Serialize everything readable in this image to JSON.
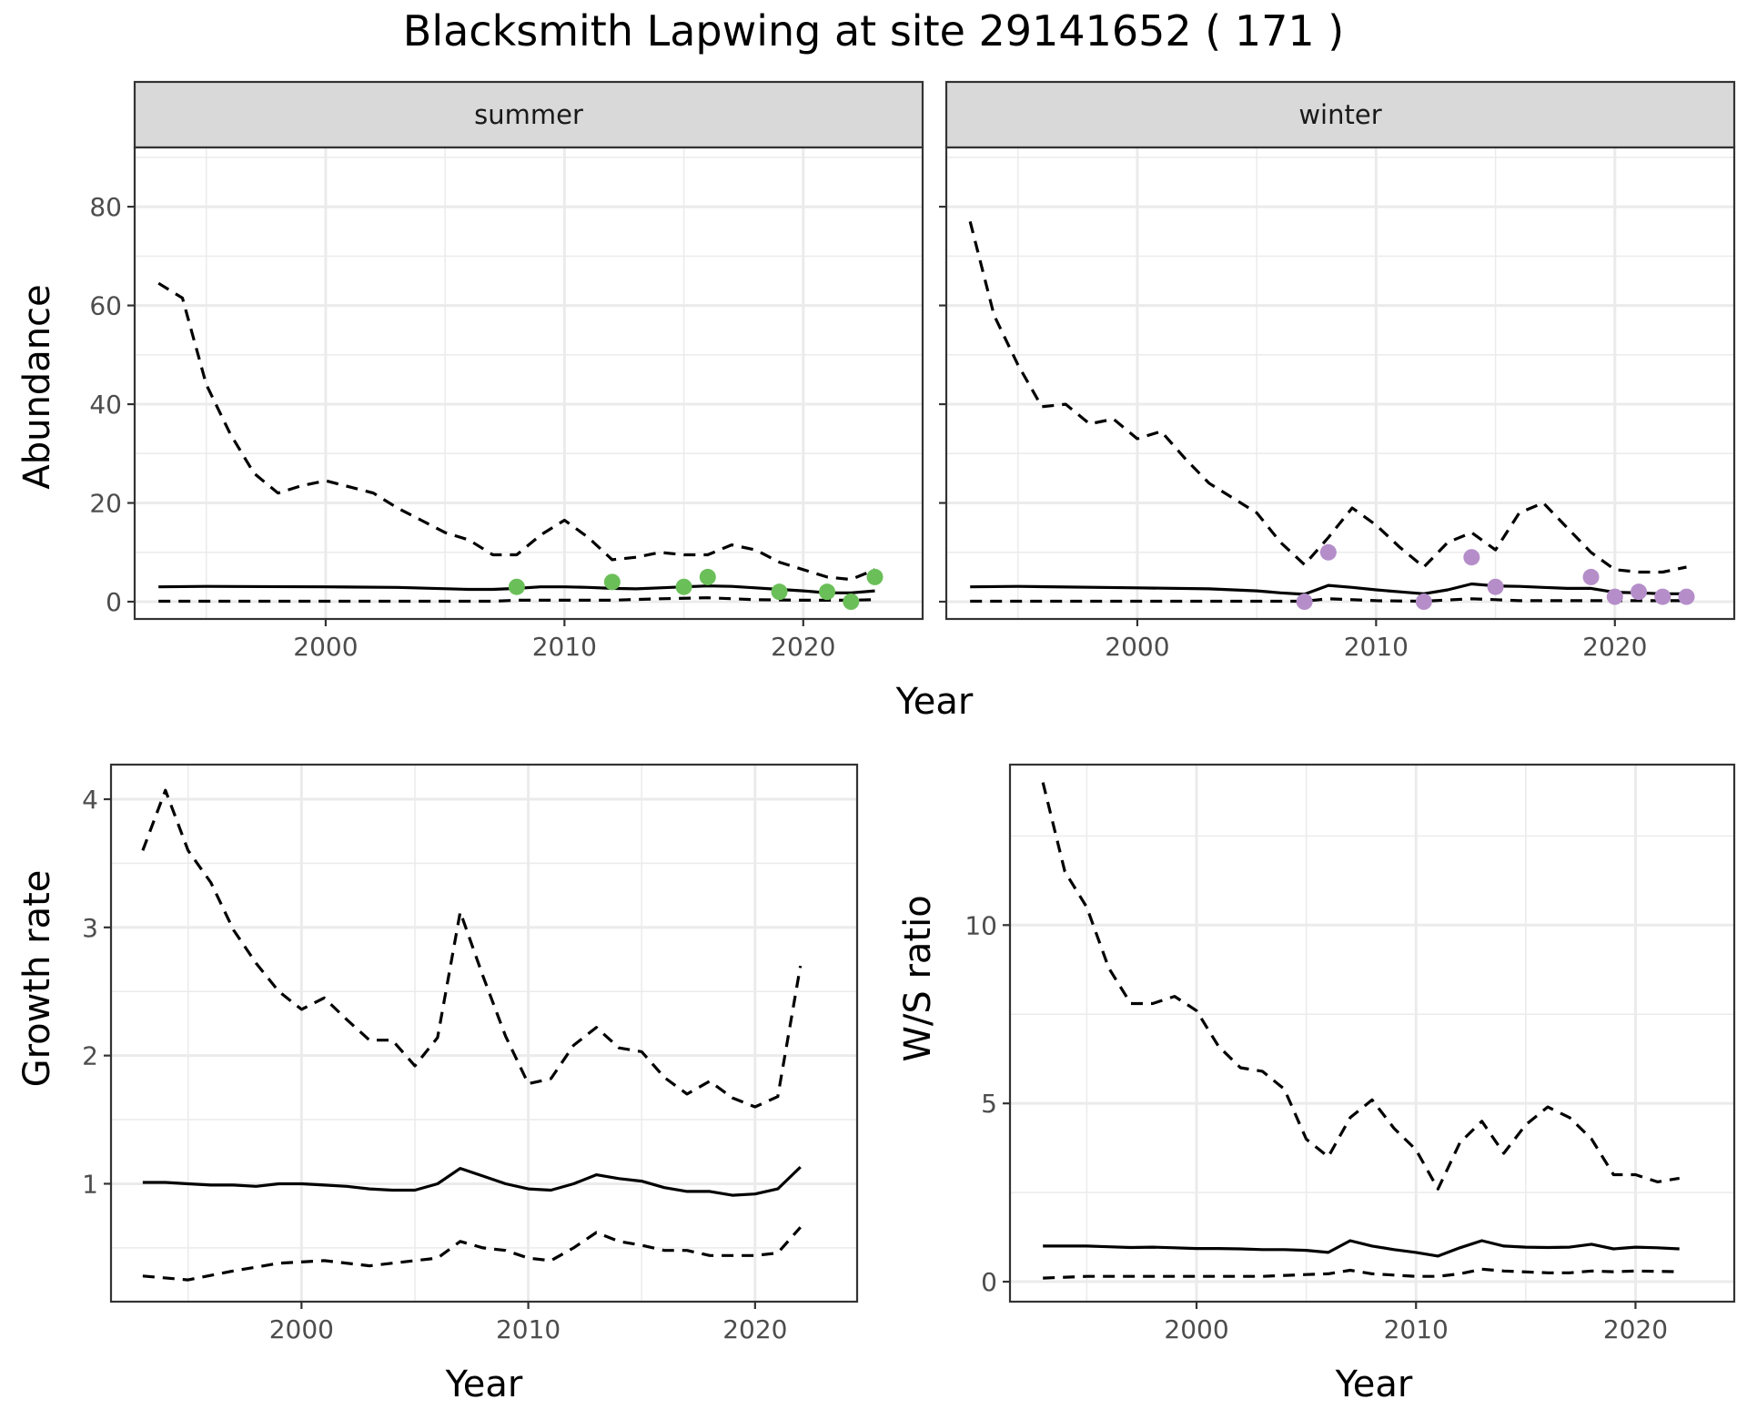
{
  "title": "Blacksmith Lapwing at site 29141652 ( 171 )",
  "colors": {
    "summer_points": "#6bbf59",
    "winter_points": "#b58ec9",
    "strip_fill": "#d9d9d9"
  },
  "chart_data": [
    {
      "type": "line",
      "panel": "summer",
      "strip_label": "summer",
      "xlabel": "Year",
      "ylabel": "Abundance",
      "xlim": [
        1992,
        2025
      ],
      "ylim": [
        -3.5,
        92
      ],
      "x_ticks": [
        2000,
        2010,
        2020
      ],
      "y_ticks": [
        0,
        20,
        40,
        60,
        80
      ],
      "grid": true,
      "series": [
        {
          "role": "estimate",
          "x": [
            1993,
            1995,
            2000,
            2003,
            2006,
            2007,
            2008,
            2009,
            2010,
            2011,
            2012,
            2013,
            2014,
            2015,
            2016,
            2017,
            2018,
            2019,
            2020,
            2021,
            2022,
            2023
          ],
          "y": [
            3.0,
            3.1,
            3.0,
            2.9,
            2.5,
            2.5,
            2.7,
            3.0,
            3.0,
            2.9,
            2.7,
            2.6,
            2.8,
            3.0,
            3.2,
            3.1,
            2.8,
            2.5,
            2.2,
            1.8,
            1.8,
            2.2
          ]
        },
        {
          "role": "upper",
          "x": [
            1993,
            1994,
            1995,
            1996,
            1997,
            1998,
            1999,
            2000,
            2002,
            2003,
            2004,
            2005,
            2006,
            2007,
            2008,
            2009,
            2010,
            2011,
            2012,
            2013,
            2014,
            2015,
            2016,
            2017,
            2018,
            2019,
            2020,
            2021,
            2022,
            2023
          ],
          "y": [
            64.5,
            61.5,
            44,
            34,
            26,
            22,
            23.5,
            24.5,
            22,
            19,
            16.5,
            14,
            12.5,
            9.5,
            9.5,
            13.5,
            16.5,
            13,
            8.5,
            9,
            10,
            9.5,
            9.5,
            11.5,
            10.5,
            8,
            6.5,
            5,
            4.5,
            6.5
          ]
        },
        {
          "role": "lower",
          "x": [
            1993,
            1995,
            2000,
            2005,
            2007,
            2008,
            2010,
            2012,
            2014,
            2016,
            2018,
            2020,
            2022,
            2023
          ],
          "y": [
            0.1,
            0.1,
            0.1,
            0.1,
            0.1,
            0.3,
            0.3,
            0.3,
            0.6,
            0.8,
            0.4,
            0.3,
            0.3,
            0.4
          ]
        }
      ],
      "points": {
        "x": [
          2008,
          2012,
          2015,
          2016,
          2019,
          2021,
          2022,
          2023
        ],
        "y": [
          3,
          4,
          3,
          5,
          2,
          2,
          0,
          5
        ]
      }
    },
    {
      "type": "line",
      "panel": "winter",
      "strip_label": "winter",
      "xlabel": "Year",
      "ylabel": "Abundance",
      "xlim": [
        1992,
        2025
      ],
      "ylim": [
        -3.5,
        92
      ],
      "x_ticks": [
        2000,
        2010,
        2020
      ],
      "y_ticks": [
        0,
        20,
        40,
        60,
        80
      ],
      "grid": true,
      "series": [
        {
          "role": "estimate",
          "x": [
            1993,
            1995,
            2000,
            2003,
            2005,
            2006,
            2007,
            2008,
            2009,
            2010,
            2011,
            2012,
            2013,
            2014,
            2015,
            2016,
            2017,
            2018,
            2019,
            2020,
            2021,
            2022,
            2023
          ],
          "y": [
            3.0,
            3.1,
            2.8,
            2.6,
            2.2,
            1.8,
            1.5,
            3.3,
            2.9,
            2.4,
            2.0,
            1.6,
            2.4,
            3.6,
            3.2,
            3.1,
            2.9,
            2.7,
            2.7,
            1.9,
            1.8,
            1.6,
            1.6
          ]
        },
        {
          "role": "upper",
          "x": [
            1993,
            1994,
            1995,
            1996,
            1997,
            1998,
            1999,
            2000,
            2001,
            2002,
            2003,
            2004,
            2005,
            2006,
            2007,
            2008,
            2009,
            2010,
            2011,
            2012,
            2013,
            2014,
            2015,
            2016,
            2017,
            2018,
            2019,
            2020,
            2021,
            2022,
            2023
          ],
          "y": [
            77,
            58,
            48,
            39.5,
            40,
            36,
            37,
            33,
            34.5,
            29,
            24,
            21,
            18,
            12,
            7.5,
            13,
            19,
            15.5,
            11,
            7,
            12,
            14,
            10.5,
            18,
            20,
            15,
            10,
            6.5,
            6,
            6,
            7
          ]
        },
        {
          "role": "lower",
          "x": [
            1993,
            2000,
            2005,
            2007,
            2008,
            2010,
            2012,
            2014,
            2015,
            2016,
            2018,
            2020,
            2023
          ],
          "y": [
            0.1,
            0.1,
            0.1,
            0.1,
            0.6,
            0.2,
            0.1,
            0.6,
            0.4,
            0.2,
            0.2,
            0.2,
            0.2
          ]
        }
      ],
      "points": {
        "x": [
          2007,
          2008,
          2012,
          2014,
          2015,
          2019,
          2020,
          2021,
          2022,
          2023
        ],
        "y": [
          0,
          10,
          0,
          9,
          3,
          5,
          1,
          2,
          1,
          1
        ]
      }
    },
    {
      "type": "line",
      "panel": "growth",
      "xlabel": "Year",
      "ylabel": "Growth rate",
      "xlim": [
        1991.6,
        2024.5
      ],
      "ylim": [
        0.08,
        4.27
      ],
      "x_ticks": [
        2000,
        2010,
        2020
      ],
      "y_ticks": [
        1,
        2,
        3,
        4
      ],
      "grid": true,
      "series": [
        {
          "role": "estimate",
          "x": [
            1993,
            1994,
            1995,
            1996,
            1997,
            1998,
            1999,
            2000,
            2001,
            2002,
            2003,
            2004,
            2005,
            2006,
            2007,
            2008,
            2009,
            2010,
            2011,
            2012,
            2013,
            2014,
            2015,
            2016,
            2017,
            2018,
            2019,
            2020,
            2021,
            2022
          ],
          "y": [
            1.01,
            1.01,
            1.0,
            0.99,
            0.99,
            0.98,
            1.0,
            1.0,
            0.99,
            0.98,
            0.96,
            0.95,
            0.95,
            1.0,
            1.12,
            1.06,
            1.0,
            0.96,
            0.95,
            1.0,
            1.07,
            1.04,
            1.02,
            0.97,
            0.94,
            0.94,
            0.91,
            0.92,
            0.96,
            1.13
          ]
        },
        {
          "role": "upper",
          "x": [
            1993,
            1994,
            1995,
            1996,
            1997,
            1998,
            1999,
            2000,
            2001,
            2002,
            2003,
            2004,
            2005,
            2006,
            2007,
            2008,
            2009,
            2010,
            2011,
            2012,
            2013,
            2014,
            2015,
            2016,
            2017,
            2018,
            2019,
            2020,
            2021,
            2022
          ],
          "y": [
            3.6,
            4.07,
            3.6,
            3.35,
            2.98,
            2.72,
            2.5,
            2.36,
            2.45,
            2.28,
            2.12,
            2.12,
            1.92,
            2.14,
            3.12,
            2.62,
            2.15,
            1.78,
            1.82,
            2.08,
            2.22,
            2.06,
            2.03,
            1.83,
            1.7,
            1.8,
            1.67,
            1.6,
            1.68,
            2.7
          ]
        },
        {
          "role": "lower",
          "x": [
            1993,
            1995,
            1997,
            1999,
            2001,
            2003,
            2005,
            2006,
            2007,
            2008,
            2009,
            2010,
            2011,
            2012,
            2013,
            2014,
            2015,
            2016,
            2017,
            2018,
            2019,
            2020,
            2021,
            2022
          ],
          "y": [
            0.28,
            0.25,
            0.32,
            0.38,
            0.4,
            0.36,
            0.4,
            0.42,
            0.55,
            0.5,
            0.48,
            0.42,
            0.4,
            0.5,
            0.62,
            0.55,
            0.52,
            0.48,
            0.48,
            0.44,
            0.44,
            0.44,
            0.46,
            0.66
          ]
        }
      ]
    },
    {
      "type": "line",
      "panel": "ratio",
      "xlabel": "Year",
      "ylabel": "W/S ratio",
      "xlim": [
        1991.5,
        2024.5
      ],
      "ylim": [
        -0.56,
        14.5
      ],
      "x_ticks": [
        2000,
        2010,
        2020
      ],
      "y_ticks": [
        0,
        5,
        10
      ],
      "grid": true,
      "series": [
        {
          "role": "estimate",
          "x": [
            1993,
            1994,
            1995,
            1996,
            1997,
            1998,
            1999,
            2000,
            2001,
            2002,
            2003,
            2004,
            2005,
            2006,
            2007,
            2008,
            2009,
            2010,
            2011,
            2012,
            2013,
            2014,
            2015,
            2016,
            2017,
            2018,
            2019,
            2020,
            2021,
            2022
          ],
          "y": [
            1.0,
            1.0,
            1.0,
            0.98,
            0.96,
            0.97,
            0.95,
            0.93,
            0.93,
            0.92,
            0.9,
            0.9,
            0.88,
            0.82,
            1.15,
            1.0,
            0.9,
            0.82,
            0.72,
            0.95,
            1.15,
            1.0,
            0.97,
            0.96,
            0.97,
            1.05,
            0.92,
            0.97,
            0.95,
            0.92
          ]
        },
        {
          "role": "upper",
          "x": [
            1993,
            1994,
            1995,
            1996,
            1997,
            1998,
            1999,
            2000,
            2001,
            2002,
            2003,
            2004,
            2005,
            2006,
            2007,
            2008,
            2009,
            2010,
            2011,
            2012,
            2013,
            2014,
            2015,
            2016,
            2017,
            2018,
            2019,
            2020,
            2021,
            2022
          ],
          "y": [
            14,
            11.5,
            10.5,
            8.8,
            7.8,
            7.8,
            8.0,
            7.6,
            6.6,
            6.0,
            5.9,
            5.4,
            4.0,
            3.5,
            4.6,
            5.1,
            4.3,
            3.7,
            2.6,
            3.9,
            4.5,
            3.6,
            4.4,
            4.9,
            4.6,
            4.0,
            3.0,
            3.0,
            2.8,
            2.9
          ]
        },
        {
          "role": "lower",
          "x": [
            1993,
            1995,
            1997,
            2000,
            2003,
            2005,
            2006,
            2007,
            2008,
            2010,
            2011,
            2012,
            2013,
            2014,
            2016,
            2017,
            2018,
            2019,
            2020,
            2022
          ],
          "y": [
            0.1,
            0.15,
            0.15,
            0.15,
            0.15,
            0.2,
            0.22,
            0.32,
            0.22,
            0.15,
            0.15,
            0.22,
            0.35,
            0.3,
            0.25,
            0.25,
            0.3,
            0.28,
            0.3,
            0.28
          ]
        }
      ]
    }
  ]
}
